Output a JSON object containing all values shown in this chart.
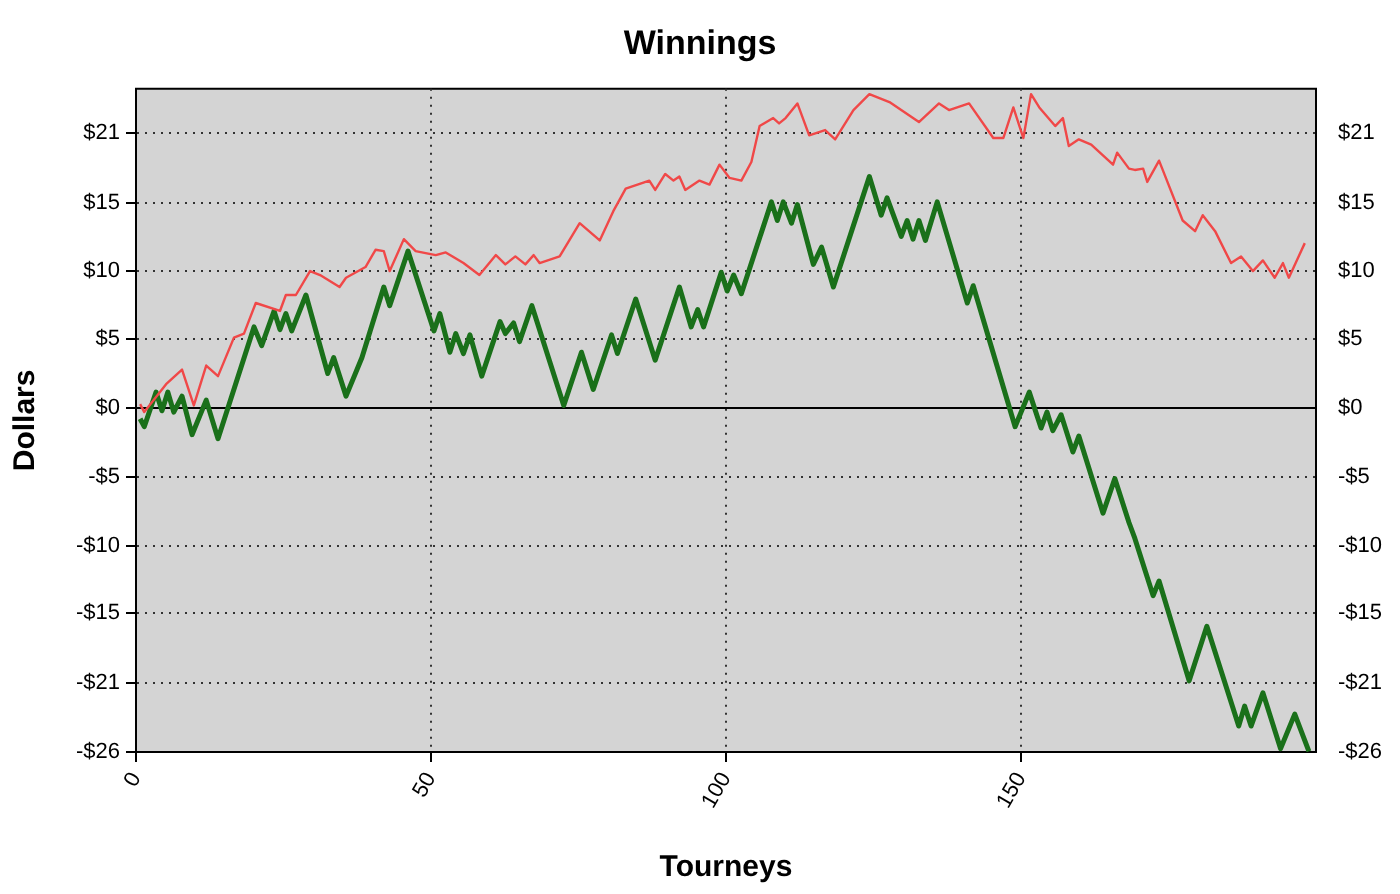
{
  "chart_data": {
    "type": "line",
    "title": "Winnings",
    "xlabel": "Tourneys",
    "ylabel": "Dollars",
    "xlim": [
      0,
      200
    ],
    "xticks": [
      0,
      50,
      100,
      150
    ],
    "ylim": [
      -25.85,
      24
    ],
    "yticks": [
      {
        "value": -25.85,
        "label": "-$26"
      },
      {
        "value": -20.68,
        "label": "-$21"
      },
      {
        "value": -15.4,
        "label": "-$15"
      },
      {
        "value": -10.34,
        "label": "-$10"
      },
      {
        "value": -5.17,
        "label": "-$5"
      },
      {
        "value": 0,
        "label": "$0"
      },
      {
        "value": 5.17,
        "label": "$5"
      },
      {
        "value": 10.34,
        "label": "$10"
      },
      {
        "value": 15.4,
        "label": "$15"
      },
      {
        "value": 20.68,
        "label": "$21"
      }
    ],
    "y2lim": [
      -25.85,
      24
    ],
    "y2ticks": [
      {
        "value": -25.85,
        "label": "-$26"
      },
      {
        "value": -20.68,
        "label": "-$21"
      },
      {
        "value": -15.4,
        "label": "-$15"
      },
      {
        "value": -10.34,
        "label": "-$10"
      },
      {
        "value": -5.17,
        "label": "-$5"
      },
      {
        "value": 0,
        "label": "$0"
      },
      {
        "value": 5.17,
        "label": "$5"
      },
      {
        "value": 10.34,
        "label": "$10"
      },
      {
        "value": 15.4,
        "label": "$15"
      },
      {
        "value": 20.68,
        "label": "$21"
      }
    ],
    "grid": true,
    "marker": "none",
    "line_style": "solid",
    "ref_lines": [
      {
        "axis": "y",
        "value": 0,
        "color": "#000000",
        "line_style": "solid"
      }
    ],
    "series": [
      {
        "color": "#f04848",
        "x": [
          0.7,
          1.4,
          5.1,
          7.8,
          9.8,
          11.9,
          13.9,
          16.6,
          18.3,
          20.3,
          24.4,
          25.4,
          27.1,
          29.5,
          31.2,
          34.5,
          35.6,
          38.9,
          40.6,
          42.0,
          43.0,
          45.4,
          47.4,
          50.8,
          52.5,
          55.5,
          58.2,
          61.0,
          62.6,
          64.3,
          66.0,
          67.4,
          68.4,
          71.8,
          75.2,
          78.6,
          80.9,
          83.0,
          87.0,
          88.0,
          89.7,
          91.1,
          92.1,
          93.1,
          95.5,
          97.2,
          98.9,
          100.6,
          102.6,
          104.3,
          105.7,
          108.0,
          109.0,
          110.1,
          112.1,
          114.1,
          116.8,
          118.5,
          121.6,
          124.3,
          127.7,
          132.7,
          136.1,
          137.8,
          141.2,
          145.3,
          147.0,
          148.7,
          150.4,
          151.7,
          153.1,
          155.8,
          157.1,
          158.1,
          159.8,
          161.9,
          165.6,
          166.3,
          168.3,
          169.3,
          170.7,
          171.4,
          173.4,
          177.4,
          179.5,
          180.8,
          182.9,
          185.6,
          187.3,
          189.3,
          191.0,
          193.0,
          194.4,
          195.4,
          198.1
        ],
        "values": [
          0.3,
          -0.3,
          1.8,
          2.9,
          0.2,
          3.2,
          2.4,
          5.3,
          5.6,
          7.9,
          7.3,
          8.5,
          8.5,
          10.3,
          10.0,
          9.1,
          9.8,
          10.6,
          11.9,
          11.8,
          10.3,
          12.7,
          11.8,
          11.5,
          11.7,
          10.9,
          10.0,
          11.5,
          10.8,
          11.4,
          10.8,
          11.5,
          10.9,
          11.4,
          13.9,
          12.6,
          14.8,
          16.5,
          17.1,
          16.4,
          17.6,
          17.1,
          17.4,
          16.4,
          17.1,
          16.8,
          18.3,
          17.3,
          17.1,
          18.5,
          21.2,
          21.8,
          21.4,
          21.8,
          22.9,
          20.5,
          20.9,
          20.2,
          22.4,
          23.6,
          23.0,
          21.5,
          22.9,
          22.4,
          22.9,
          20.3,
          20.3,
          22.6,
          20.3,
          23.6,
          22.6,
          21.2,
          21.8,
          19.7,
          20.2,
          19.8,
          18.3,
          19.2,
          18.0,
          17.9,
          18.0,
          17.0,
          18.6,
          14.1,
          13.3,
          14.5,
          13.3,
          10.9,
          11.4,
          10.3,
          11.1,
          9.8,
          10.9,
          9.8,
          12.4
        ]
      },
      {
        "color": "#1a701a",
        "x": [
          0.7,
          1.4,
          3.4,
          4.4,
          5.4,
          6.4,
          7.8,
          9.5,
          11.9,
          13.9,
          20.0,
          21.3,
          23.4,
          24.4,
          25.4,
          26.4,
          28.8,
          32.5,
          33.5,
          35.6,
          38.3,
          42.0,
          43.0,
          46.1,
          50.5,
          51.5,
          53.2,
          54.2,
          55.5,
          56.6,
          58.6,
          61.7,
          62.6,
          64.0,
          65.0,
          67.1,
          72.5,
          75.5,
          77.5,
          80.6,
          81.6,
          84.7,
          88.0,
          92.1,
          94.1,
          95.2,
          96.2,
          99.2,
          100.2,
          101.3,
          102.6,
          107.7,
          108.7,
          109.7,
          111.1,
          112.1,
          114.8,
          116.2,
          118.2,
          124.3,
          126.3,
          127.3,
          129.7,
          130.7,
          131.7,
          132.7,
          133.8,
          135.8,
          140.9,
          141.9,
          149.0,
          151.4,
          153.4,
          154.4,
          155.4,
          156.8,
          158.8,
          159.8,
          163.9,
          165.9,
          168.3,
          169.3,
          172.4,
          173.4,
          178.5,
          181.5,
          186.9,
          187.9,
          189.0,
          191.0,
          194.0,
          196.4,
          198.8
        ],
        "values": [
          -0.8,
          -1.4,
          1.2,
          -0.2,
          1.2,
          -0.3,
          0.9,
          -2.0,
          0.6,
          -2.3,
          6.1,
          4.7,
          7.3,
          5.9,
          7.1,
          5.8,
          8.5,
          2.6,
          3.8,
          0.9,
          3.8,
          9.1,
          7.7,
          11.8,
          5.8,
          7.1,
          4.2,
          5.6,
          4.1,
          5.5,
          2.4,
          6.5,
          5.6,
          6.4,
          5.0,
          7.7,
          0.2,
          4.2,
          1.4,
          5.5,
          4.1,
          8.2,
          3.6,
          9.1,
          6.1,
          7.4,
          6.1,
          10.2,
          8.8,
          10.0,
          8.6,
          15.5,
          14.1,
          15.5,
          13.9,
          15.3,
          10.8,
          12.1,
          9.1,
          17.4,
          14.5,
          15.8,
          12.9,
          14.1,
          12.7,
          14.1,
          12.6,
          15.5,
          7.9,
          9.2,
          -1.4,
          1.2,
          -1.5,
          -0.3,
          -1.7,
          -0.5,
          -3.3,
          -2.1,
          -7.9,
          -5.3,
          -8.6,
          -9.8,
          -14.1,
          -13.0,
          -20.5,
          -16.4,
          -23.9,
          -22.4,
          -23.9,
          -21.4,
          -25.6,
          -23.0,
          -25.8
        ]
      }
    ]
  }
}
